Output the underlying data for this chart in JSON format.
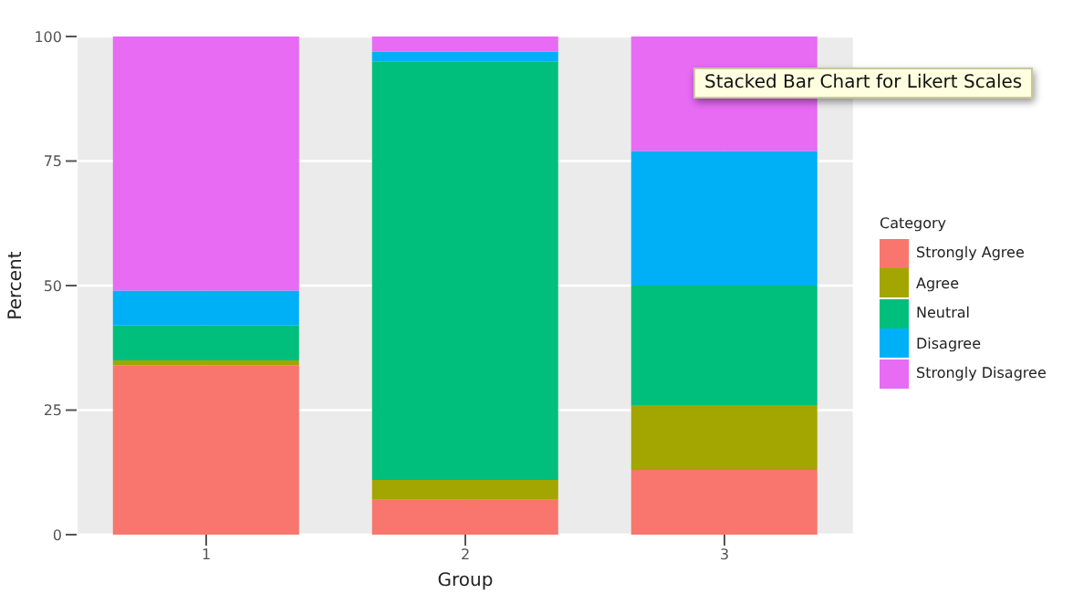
{
  "chart_data": {
    "type": "bar",
    "stacked": true,
    "title": "Stacked Bar Chart for Likert Scales",
    "xlabel": "Group",
    "ylabel": "Percent",
    "legend_title": "Category",
    "categories": [
      "1",
      "2",
      "3"
    ],
    "series": [
      {
        "name": "Strongly Agree",
        "color": "#f8766d",
        "values": [
          34,
          7,
          13
        ]
      },
      {
        "name": "Agree",
        "color": "#a3a500",
        "values": [
          1,
          4,
          13
        ]
      },
      {
        "name": "Neutral",
        "color": "#00bf7d",
        "values": [
          7,
          84,
          24
        ]
      },
      {
        "name": "Disagree",
        "color": "#00b0f6",
        "values": [
          7,
          2,
          27
        ]
      },
      {
        "name": "Strongly Disagree",
        "color": "#e76bf3",
        "values": [
          51,
          3,
          23
        ]
      }
    ],
    "ylim": [
      0,
      100
    ],
    "yticks": [
      0,
      25,
      50,
      75,
      100
    ],
    "grid": true,
    "legend": "right"
  }
}
